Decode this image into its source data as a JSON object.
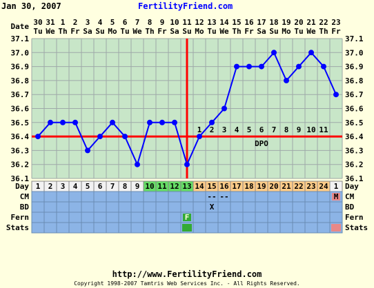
{
  "header": {
    "date": "Jan 30, 2007",
    "site": "FertilityFriend.com"
  },
  "footer": {
    "url": "http://www.FertilityFriend.com",
    "copyright": "Copyright 1998-2007 Tamtris Web Services Inc. - All Rights Reserved."
  },
  "colors": {
    "background": "#FFFFE0",
    "grid_bg": "#C8E6C8",
    "line": "#0000FF",
    "coverline": "#FF0000",
    "ovulation": "#FF0000",
    "grid_line": "#9EA8A8",
    "day_normal": "#F2F2F2",
    "day_fertile": "#66DD66",
    "day_luteal": "#FFCC88",
    "row_fill": "#8CB4E6",
    "fern_positive": "#33AA33",
    "menses": "#E88888"
  },
  "chart_data": {
    "type": "line",
    "title": "",
    "row_labels": {
      "date": "Date",
      "day": "Day",
      "cm": "CM",
      "bd": "BD",
      "fern": "Fern",
      "stats": "Stats"
    },
    "dates": [
      "30",
      "31",
      "1",
      "2",
      "3",
      "4",
      "5",
      "6",
      "7",
      "8",
      "9",
      "10",
      "11",
      "12",
      "13",
      "14",
      "15",
      "16",
      "17",
      "18",
      "19",
      "20",
      "21",
      "22",
      "23"
    ],
    "weekdays": [
      "Tu",
      "We",
      "Th",
      "Fr",
      "Sa",
      "Su",
      "Mo",
      "Tu",
      "We",
      "Th",
      "Fr",
      "Sa",
      "Su",
      "Mo",
      "Tu",
      "We",
      "Th",
      "Fr",
      "Sa",
      "Su",
      "Mo",
      "Tu",
      "We",
      "Th",
      "Fr"
    ],
    "cycle_days": [
      "1",
      "2",
      "3",
      "4",
      "5",
      "6",
      "7",
      "8",
      "9",
      "10",
      "11",
      "12",
      "13",
      "14",
      "15",
      "16",
      "17",
      "18",
      "19",
      "20",
      "21",
      "22",
      "23",
      "24",
      "1"
    ],
    "day_phase": [
      "n",
      "n",
      "n",
      "n",
      "n",
      "n",
      "n",
      "n",
      "n",
      "f",
      "f",
      "f",
      "f",
      "l",
      "l",
      "l",
      "l",
      "l",
      "l",
      "l",
      "l",
      "l",
      "l",
      "l",
      "n"
    ],
    "temperatures": [
      36.4,
      36.5,
      36.5,
      36.5,
      36.3,
      36.4,
      36.5,
      36.4,
      36.2,
      36.5,
      36.5,
      36.5,
      36.2,
      36.4,
      36.5,
      36.6,
      36.9,
      36.9,
      36.9,
      37.0,
      36.8,
      36.9,
      37.0,
      36.9,
      36.7
    ],
    "y_ticks": [
      "36.1",
      "36.2",
      "36.3",
      "36.4",
      "36.5",
      "36.6",
      "36.7",
      "36.8",
      "36.9",
      "37.0",
      "37.1"
    ],
    "ylim": [
      36.1,
      37.1
    ],
    "coverline": 36.4,
    "ovulation_index": 12,
    "dpo": {
      "label": "DPO",
      "start_index": 13,
      "values": [
        "1",
        "2",
        "3",
        "4",
        "5",
        "6",
        "7",
        "8",
        "9",
        "10",
        "11"
      ]
    },
    "cm": [
      "",
      "",
      "",
      "",
      "",
      "",
      "",
      "",
      "",
      "",
      "",
      "",
      "",
      "",
      "--",
      "--",
      "",
      "",
      "",
      "",
      "",
      "",
      "",
      "",
      "M"
    ],
    "bd": [
      "",
      "",
      "",
      "",
      "",
      "",
      "",
      "",
      "",
      "",
      "",
      "",
      "",
      "",
      "X",
      "",
      "",
      "",
      "",
      "",
      "",
      "",
      "",
      "",
      ""
    ],
    "fern": [
      "",
      "",
      "",
      "",
      "",
      "",
      "",
      "",
      "",
      "",
      "",
      "",
      "F",
      "",
      "",
      "",
      "",
      "",
      "",
      "",
      "",
      "",
      "",
      "",
      ""
    ],
    "stats": [
      "",
      "",
      "",
      "",
      "",
      "",
      "",
      "",
      "",
      "",
      "",
      "",
      "g",
      "",
      "",
      "",
      "",
      "",
      "",
      "",
      "",
      "",
      "",
      "",
      "r"
    ]
  }
}
